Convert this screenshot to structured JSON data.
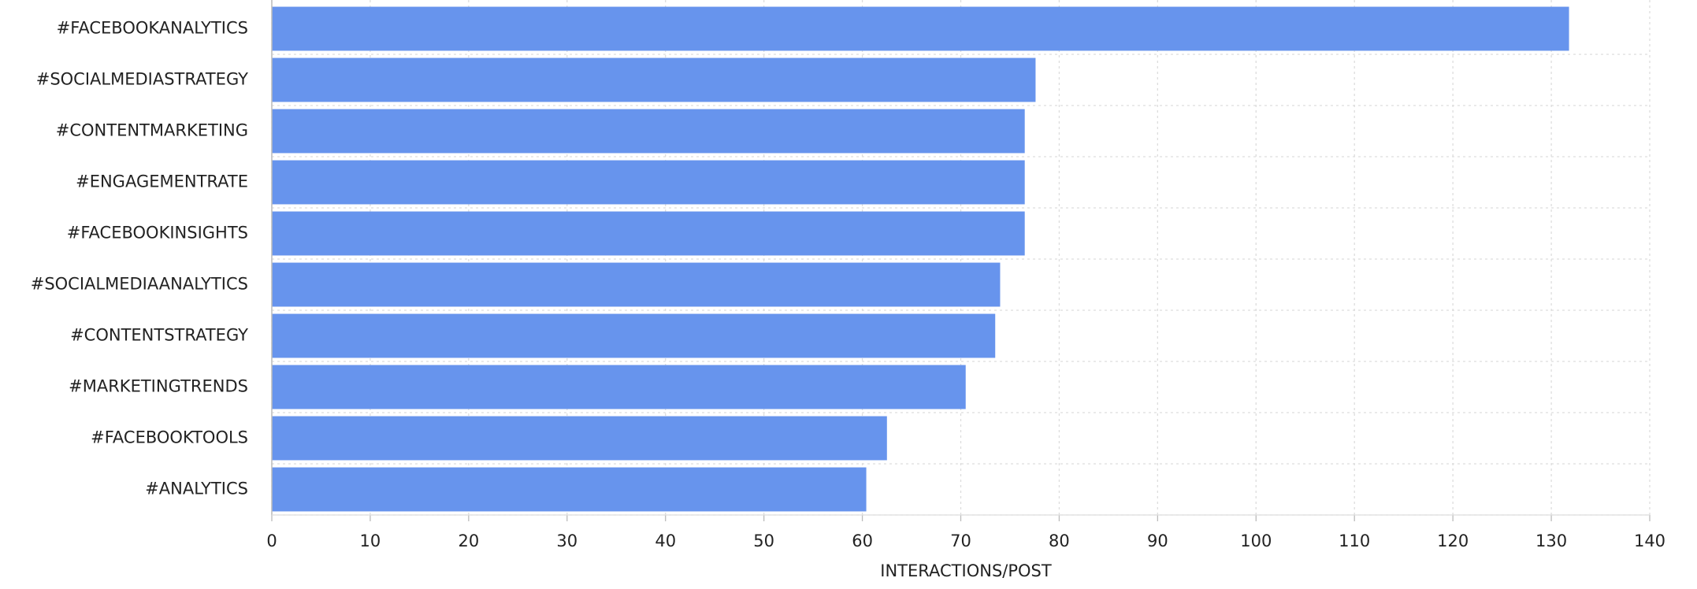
{
  "chart_data": {
    "type": "bar",
    "orientation": "horizontal",
    "categories": [
      "#FACEBOOKANALYTICS",
      "#SOCIALMEDIASTRATEGY",
      "#CONTENTMARKETING",
      "#ENGAGEMENTRATE",
      "#FACEBOOKINSIGHTS",
      "#SOCIALMEDIAANALYTICS",
      "#CONTENTSTRATEGY",
      "#MARKETINGTRENDS",
      "#FACEBOOKTOOLS",
      "#ANALYTICS"
    ],
    "values": [
      131.8,
      77.6,
      76.5,
      76.5,
      76.5,
      74.0,
      73.5,
      70.5,
      62.5,
      60.4
    ],
    "color": "#6794ed",
    "x_label": "INTERACTIONS/POST",
    "xlim": [
      0,
      140
    ],
    "xticks": [
      0,
      10,
      20,
      30,
      40,
      50,
      60,
      70,
      80,
      90,
      100,
      110,
      120,
      130,
      140
    ],
    "grid": true
  }
}
